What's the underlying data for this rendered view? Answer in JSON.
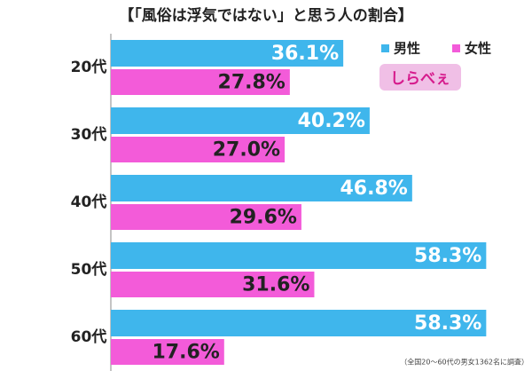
{
  "chart_data": {
    "type": "bar",
    "orientation": "horizontal",
    "title": "【「風俗は浮気ではない」と思う人の割合】",
    "categories": [
      "20代",
      "30代",
      "40代",
      "50代",
      "60代"
    ],
    "series": [
      {
        "name": "男性",
        "color": "#3fb6ec",
        "values": [
          36.1,
          40.2,
          46.8,
          58.3,
          58.3
        ],
        "value_labels": [
          "36.1%",
          "40.2%",
          "46.8%",
          "58.3%",
          "58.3%"
        ]
      },
      {
        "name": "女性",
        "color": "#f35bd9",
        "values": [
          27.8,
          27.0,
          29.6,
          31.6,
          17.6
        ],
        "value_labels": [
          "27.8%",
          "27.0%",
          "29.6%",
          "31.6%",
          "17.6%"
        ]
      }
    ],
    "xlim": [
      0,
      65
    ],
    "logo": "しらべぇ",
    "note": "（全国20～60代の男女1362名に調査）"
  }
}
